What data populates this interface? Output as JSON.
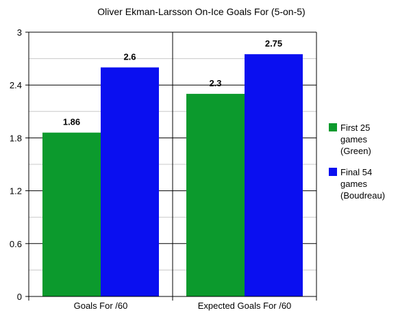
{
  "chart_data": {
    "type": "bar",
    "title": "Oliver Ekman-Larsson On-Ice Goals For (5-on-5)",
    "xlabel": "",
    "ylabel": "",
    "categories": [
      "Goals For /60",
      "Expected Goals For /60"
    ],
    "series": [
      {
        "name": "First 25 games (Green)",
        "legend_lines": [
          "First 25",
          "games",
          "(Green)"
        ],
        "color": "#0c9a2d",
        "values": [
          1.86,
          2.3
        ],
        "value_labels": [
          "1.86",
          "2.3"
        ]
      },
      {
        "name": "Final 54 games (Boudreau)",
        "legend_lines": [
          "Final 54",
          "games",
          "(Boudreau)"
        ],
        "color": "#0a0ff0",
        "values": [
          2.6,
          2.75
        ],
        "value_labels": [
          "2.6",
          "2.75"
        ]
      }
    ],
    "ylim": [
      0,
      3
    ],
    "yticks": [
      "0",
      "0.6",
      "1.2",
      "1.8",
      "2.4",
      "3"
    ],
    "grid": true,
    "legend_position": "right"
  }
}
